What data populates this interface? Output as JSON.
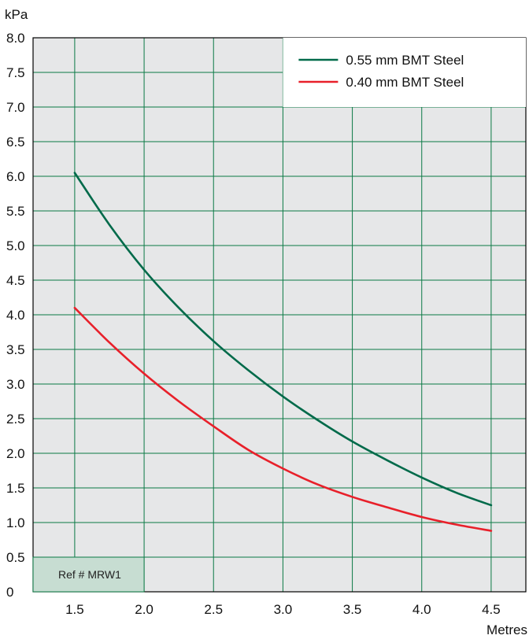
{
  "chart_data": {
    "type": "line",
    "ylabel": "kPa",
    "xlabel": "Metres",
    "xlim": [
      1.2,
      4.75
    ],
    "ylim": [
      0,
      8.0
    ],
    "x_ticks": [
      1.5,
      2.0,
      2.5,
      3.0,
      3.5,
      4.0,
      4.5
    ],
    "x_tick_labels": [
      "1.5",
      "2.0",
      "2.5",
      "3.0",
      "3.5",
      "4.0",
      "4.5"
    ],
    "y_ticks": [
      0,
      0.5,
      1.0,
      1.5,
      2.0,
      2.5,
      3.0,
      3.5,
      4.0,
      4.5,
      5.0,
      5.5,
      6.0,
      6.5,
      7.0,
      7.5,
      8.0
    ],
    "y_tick_labels": [
      "0",
      "0.5",
      "1.0",
      "1.5",
      "2.0",
      "2.5",
      "3.0",
      "3.5",
      "4.0",
      "4.5",
      "5.0",
      "5.5",
      "6.0",
      "6.5",
      "7.0",
      "7.5",
      "8.0"
    ],
    "grid": true,
    "legend_position": "top-right",
    "series": [
      {
        "name": "0.55 mm BMT Steel",
        "color": "#006a4a",
        "x": [
          1.5,
          1.75,
          2.0,
          2.25,
          2.5,
          2.75,
          3.0,
          3.25,
          3.5,
          3.75,
          4.0,
          4.25,
          4.5
        ],
        "y": [
          6.05,
          5.3,
          4.65,
          4.1,
          3.62,
          3.2,
          2.82,
          2.48,
          2.17,
          1.9,
          1.65,
          1.43,
          1.25
        ]
      },
      {
        "name": "0.40 mm BMT Steel",
        "color": "#e8202a",
        "x": [
          1.5,
          1.75,
          2.0,
          2.25,
          2.5,
          2.75,
          3.0,
          3.25,
          3.5,
          3.75,
          4.0,
          4.25,
          4.5
        ],
        "y": [
          4.1,
          3.6,
          3.15,
          2.75,
          2.39,
          2.05,
          1.78,
          1.55,
          1.37,
          1.22,
          1.08,
          0.97,
          0.88
        ]
      }
    ],
    "annotations": [
      {
        "text": "Ref # MRW1",
        "position": "bottom-left"
      }
    ]
  }
}
